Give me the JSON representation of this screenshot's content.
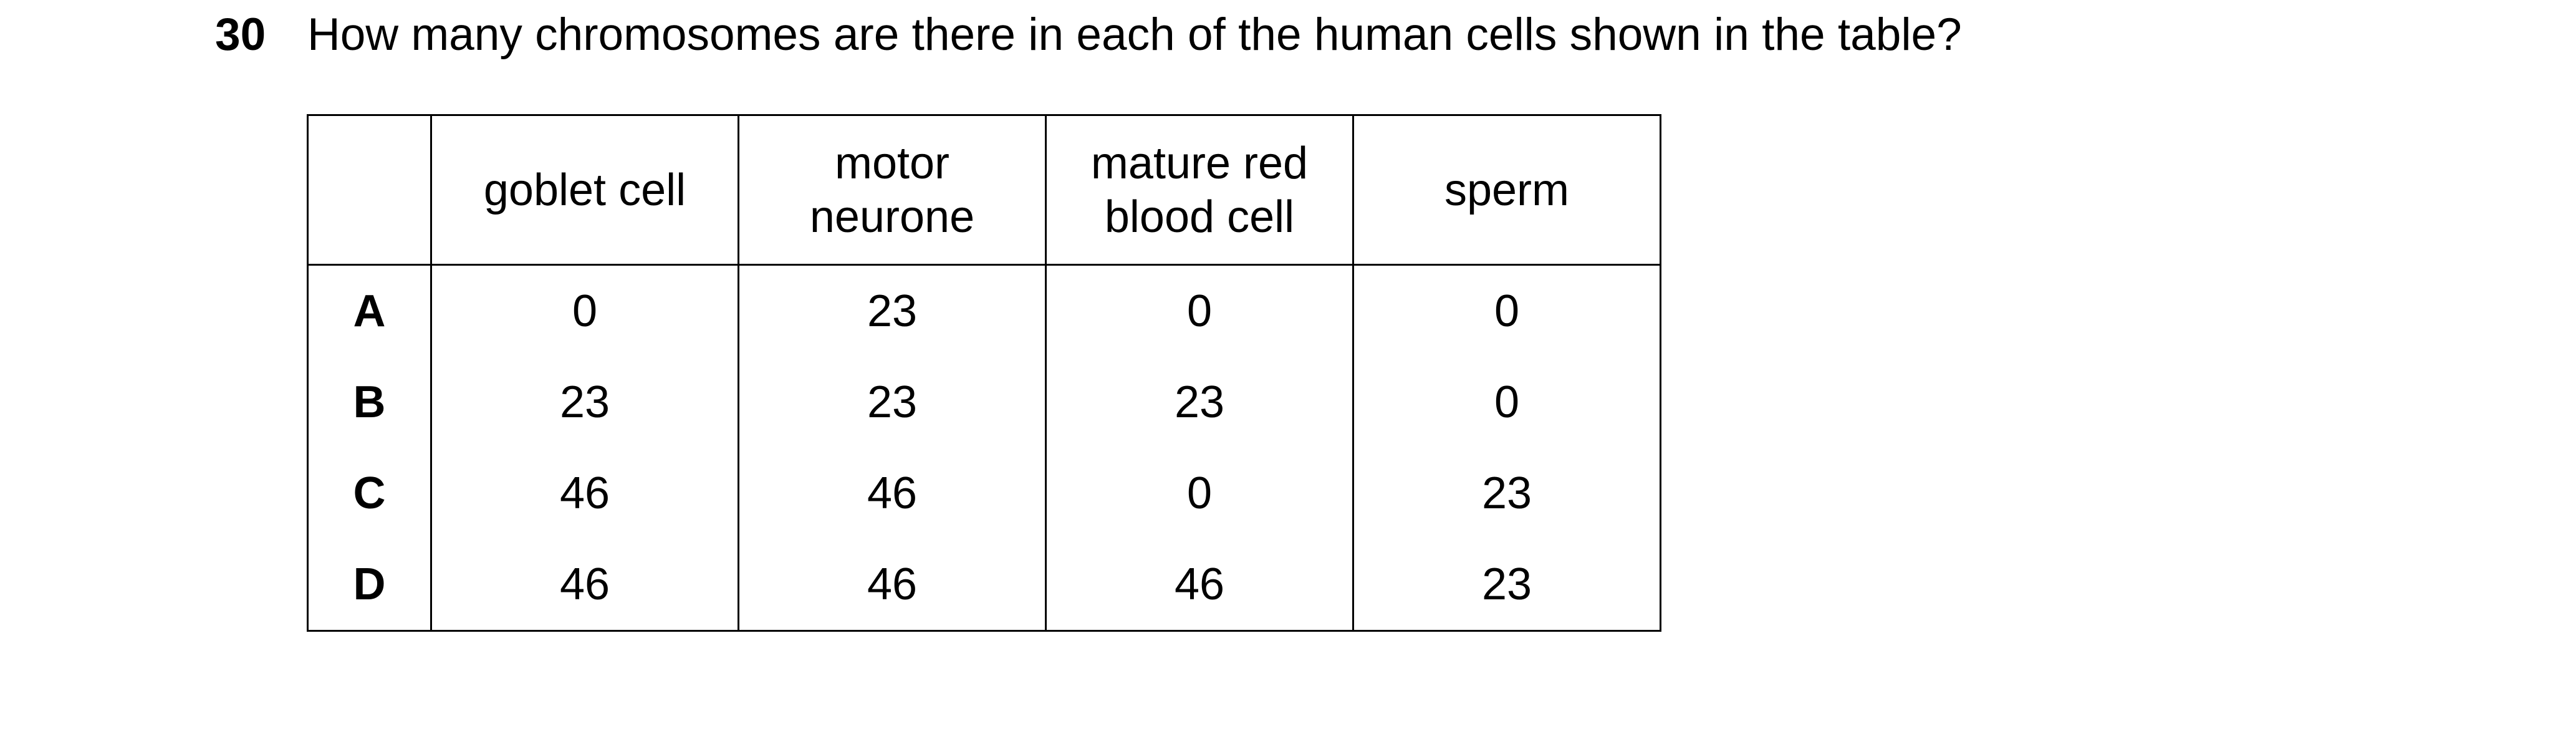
{
  "question": {
    "number": "30",
    "text": "How many chromosomes are there in each of the human cells shown in the table?"
  },
  "table": {
    "headers": [
      "",
      "goblet cell",
      "motor neurone",
      "mature red blood cell",
      "sperm"
    ],
    "rows": [
      {
        "label": "A",
        "values": [
          "0",
          "23",
          "0",
          "0"
        ]
      },
      {
        "label": "B",
        "values": [
          "23",
          "23",
          "23",
          "0"
        ]
      },
      {
        "label": "C",
        "values": [
          "46",
          "46",
          "0",
          "23"
        ]
      },
      {
        "label": "D",
        "values": [
          "46",
          "46",
          "46",
          "23"
        ]
      }
    ]
  }
}
